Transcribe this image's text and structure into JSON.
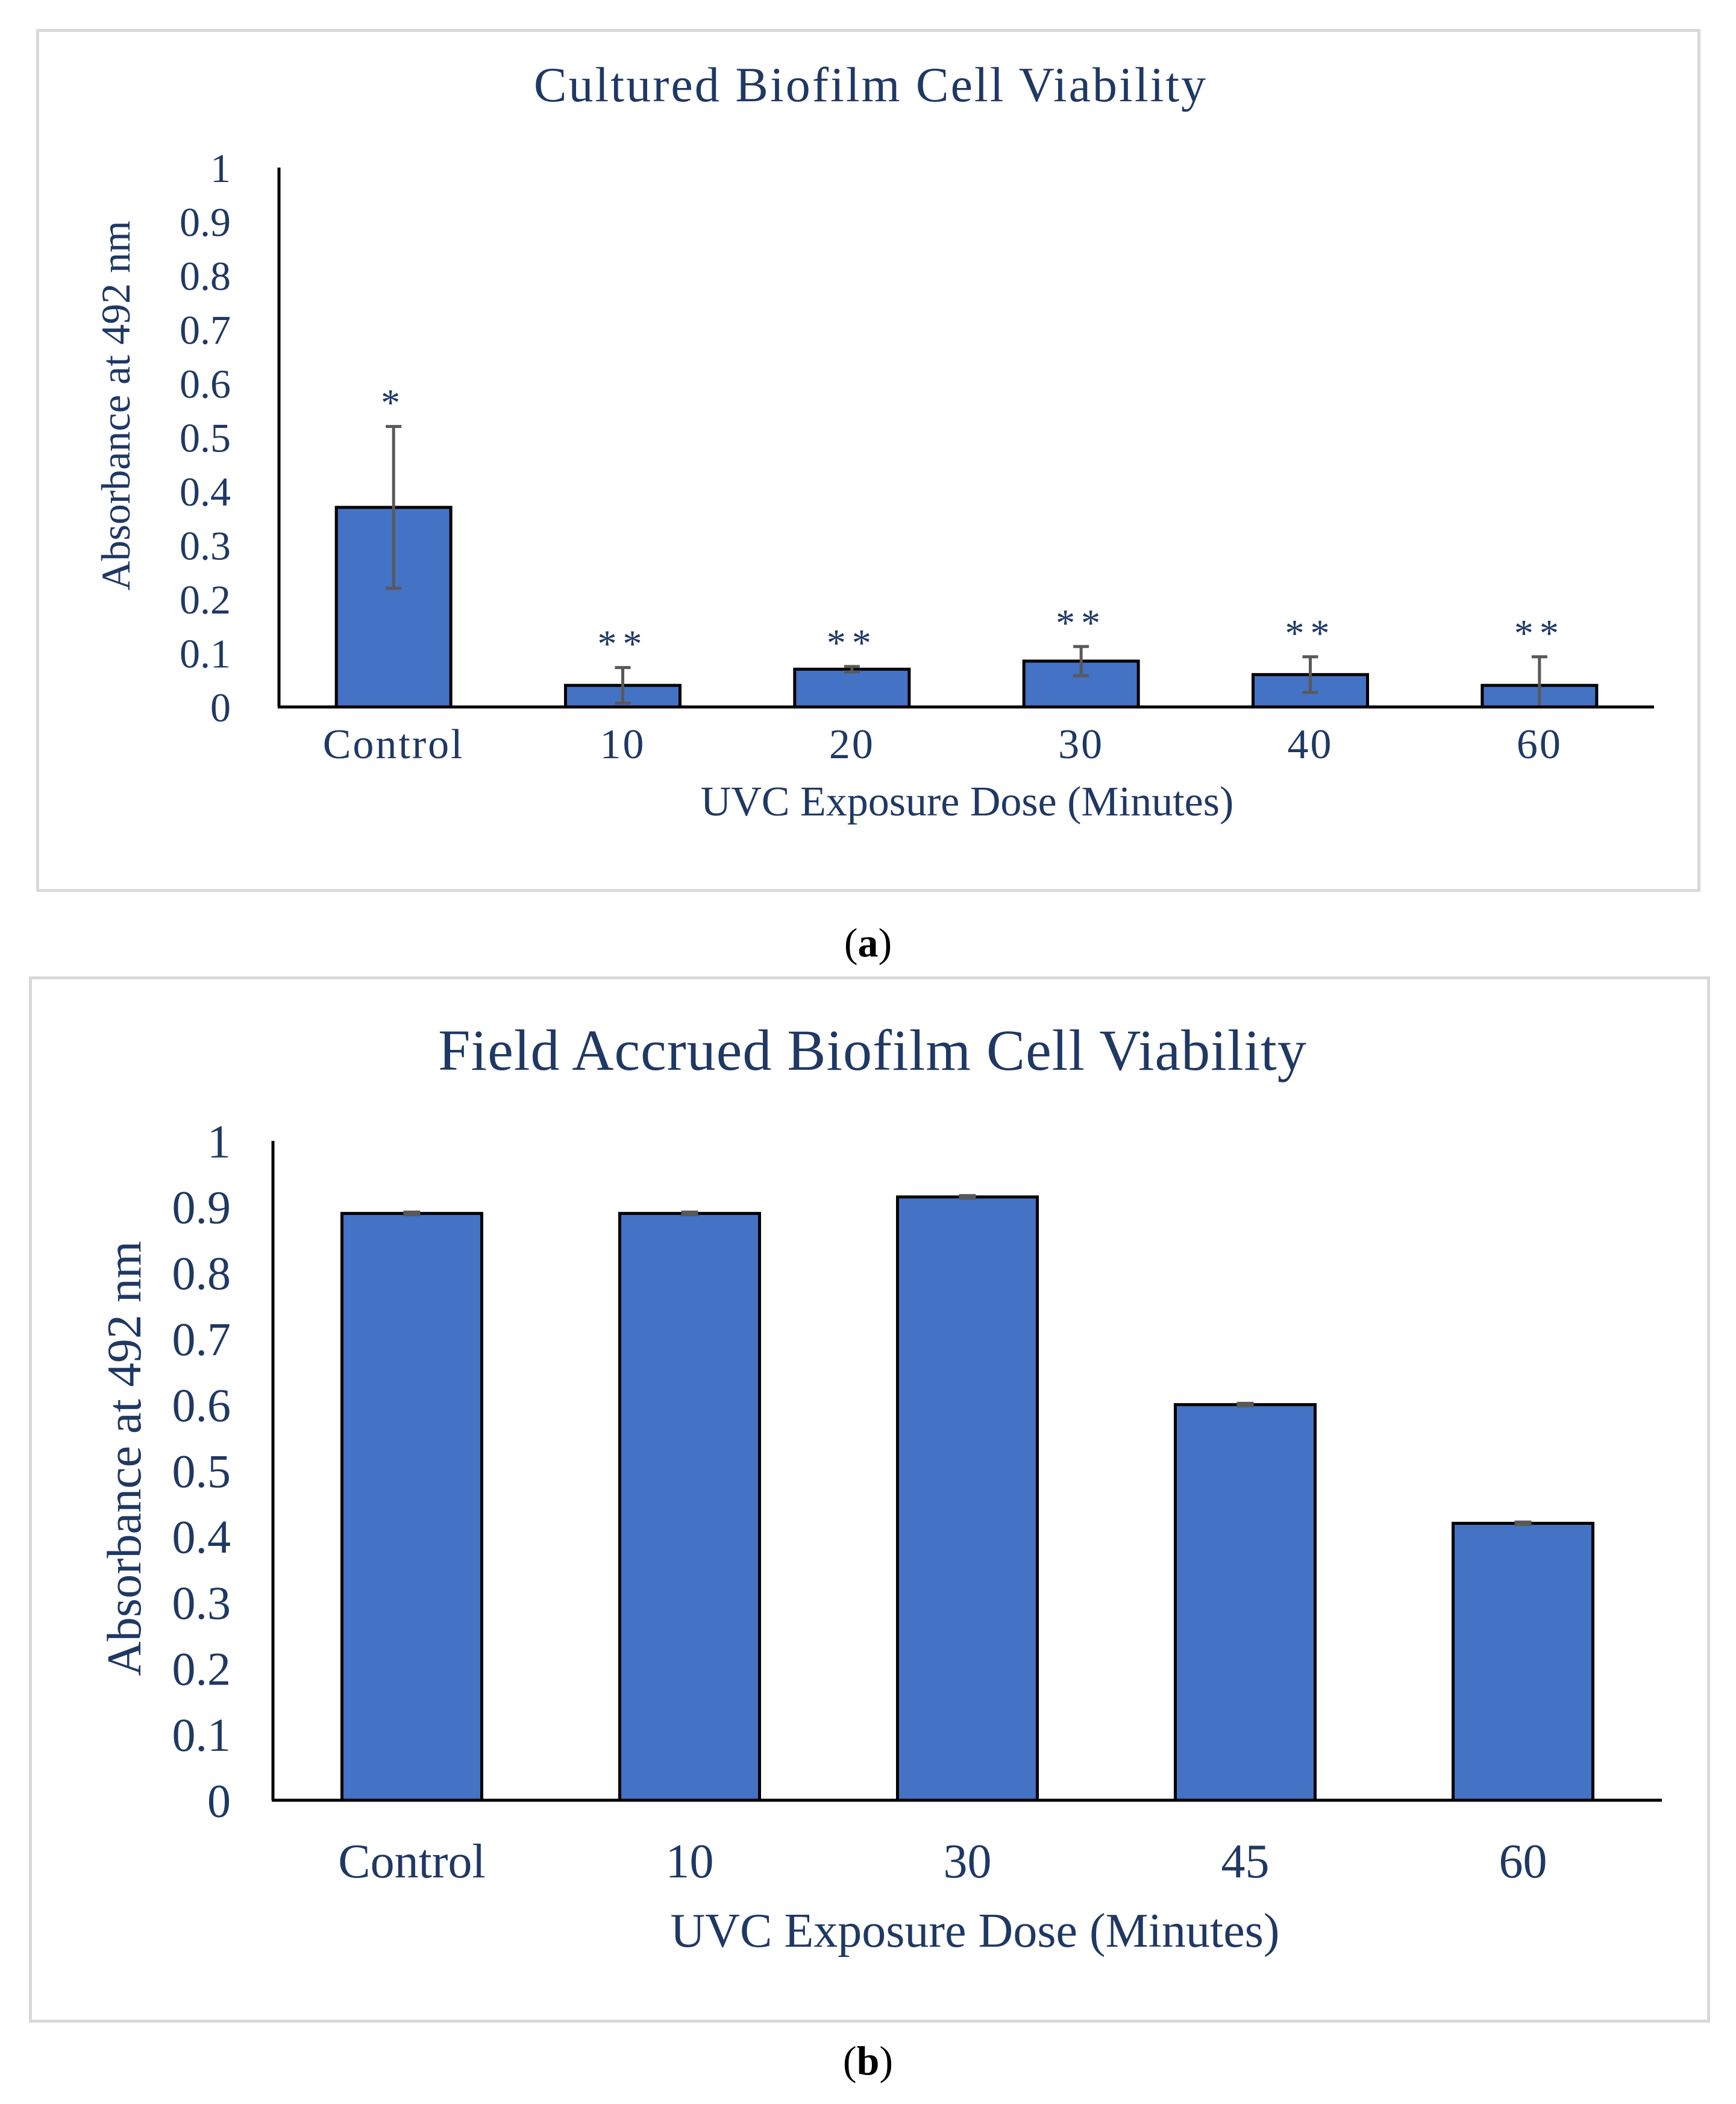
{
  "colors": {
    "bar_fill": "#4472c4",
    "bar_stroke": "#000000",
    "text": "#1f3864",
    "error_bar": "#595959",
    "axis": "#000000"
  },
  "chart_data": [
    {
      "type": "bar",
      "title": "Cultured Biofilm Cell Viability",
      "xlabel": "UVC Exposure Dose (Minutes)",
      "ylabel": "Absorbance at 492 nm",
      "categories": [
        "Control",
        "10",
        "20",
        "30",
        "40",
        "60"
      ],
      "values": [
        0.37,
        0.04,
        0.07,
        0.085,
        0.06,
        0.04
      ],
      "errors": [
        0.15,
        0.033,
        0.005,
        0.027,
        0.033,
        0.053
      ],
      "significance": [
        "*",
        "**",
        "**",
        "**",
        "**",
        "**"
      ],
      "ylim": [
        0,
        1
      ],
      "yticks": [
        "0",
        "0.1",
        "0.2",
        "0.3",
        "0.4",
        "0.5",
        "0.6",
        "0.7",
        "0.8",
        "0.9",
        "1"
      ],
      "grid": false,
      "legend": "none"
    },
    {
      "type": "bar",
      "title": "Field Accrued Biofilm Cell Viability",
      "xlabel": "UVC Exposure Dose (Minutes)",
      "ylabel": "Absorbance at 492 nm",
      "categories": [
        "Control",
        "10",
        "30",
        "45",
        "60"
      ],
      "values": [
        0.89,
        0.89,
        0.915,
        0.6,
        0.42
      ],
      "errors": [
        0.002,
        0.002,
        0.002,
        0.002,
        0.002
      ],
      "ylim": [
        0,
        1
      ],
      "yticks": [
        "0",
        "0.1",
        "0.2",
        "0.3",
        "0.4",
        "0.5",
        "0.6",
        "0.7",
        "0.8",
        "0.9",
        "1"
      ],
      "grid": false,
      "legend": "none"
    }
  ],
  "captions": {
    "a": {
      "open": "(",
      "letter": "a",
      "close": ")"
    },
    "b": {
      "open": "(",
      "letter": "b",
      "close": ")"
    }
  }
}
